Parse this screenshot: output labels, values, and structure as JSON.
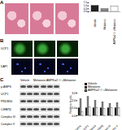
{
  "panels": {
    "A": {
      "label": "A"
    },
    "B": {
      "label": "B",
      "rows": [
        "UCP1",
        "DAPI"
      ]
    },
    "C": {
      "label": "C",
      "columns": [
        "Vehicle",
        "Melatonin",
        "AMPKα2−/−+Melatonin"
      ],
      "blot_rows": [
        "p-AMPK",
        "UCP1",
        "PRDM16",
        "C/EBPβ",
        "Complex III",
        "Complex V"
      ]
    }
  },
  "chart_data": [
    {
      "type": "bar",
      "categories": [
        "Vehicle",
        "Melatonin",
        "AMPKα2−/−+Melatonin"
      ],
      "values": [
        1,
        0.45,
        0.9
      ],
      "colors": [
        "#222222",
        "#888888",
        "#ffffff"
      ],
      "ylim": [
        0,
        1.5
      ],
      "yticks": [
        0,
        0.5,
        1,
        1.5
      ]
    },
    {
      "type": "bar",
      "ylabel": "Relative levels",
      "categories": [
        "p-AMPK",
        "UCP1",
        "PRDM16",
        "C/EBPβ",
        "Complex III",
        "Complex V"
      ],
      "series": [
        {
          "name": "Vehicle",
          "color": "#222222",
          "values": [
            1,
            1,
            1,
            1,
            1,
            1
          ]
        },
        {
          "name": "Melatonin",
          "color": "#888888",
          "values": [
            2.2,
            2.5,
            2,
            1.8,
            1.6,
            1.7
          ]
        },
        {
          "name": "AMPKα2−/−+Melatonin",
          "color": "#ffffff",
          "values": [
            0.5,
            1.1,
            1,
            0.9,
            1,
            1
          ]
        }
      ],
      "ylim": [
        0,
        3
      ],
      "yticks": [
        0,
        1,
        2,
        3
      ],
      "legend": "top-right"
    }
  ]
}
